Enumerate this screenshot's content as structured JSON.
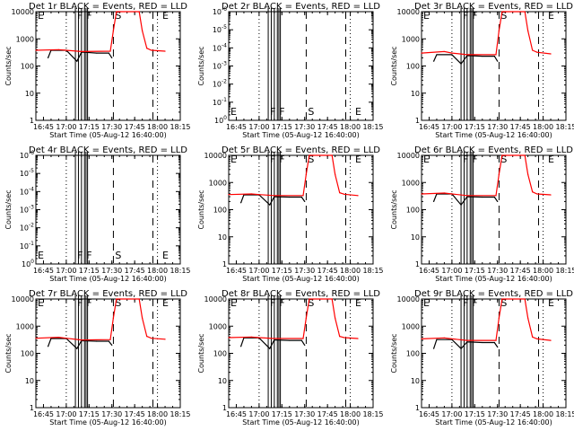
{
  "figure": {
    "layout": "3x3 grid",
    "background": "#ffffff",
    "colors": {
      "events": "#000000",
      "lld": "#ff0000",
      "axes": "#000000"
    }
  },
  "chart_data": [
    {
      "type": "line",
      "panel": 1,
      "title": "Det 1r BLACK = Events, RED = LLD",
      "xlabel": "Start Time (05-Aug-12 16:40:00)",
      "ylabel": "Counts/sec",
      "yscale": "log",
      "ylim": [
        1,
        10000
      ],
      "ytick_labels": [
        "1",
        "10",
        "100",
        "1000",
        "10000"
      ],
      "xlim_minutes": [
        0,
        95
      ],
      "xtick_labels": [
        "16:45",
        "17:00",
        "17:15",
        "17:30",
        "17:45",
        "18:00",
        "18:15"
      ],
      "has_data": true,
      "series": [
        {
          "name": "Events",
          "color": "#000000",
          "x_minutes": [
            8,
            10,
            20,
            27,
            30,
            32,
            40,
            48,
            50
          ],
          "values": [
            200,
            380,
            380,
            150,
            320,
            320,
            300,
            300,
            200
          ]
        },
        {
          "name": "LLD",
          "color": "#ff0000",
          "x_minutes": [
            0,
            15,
            20,
            30,
            49,
            51,
            53,
            68,
            70,
            73,
            76,
            85
          ],
          "values": [
            380,
            400,
            380,
            340,
            350,
            2000,
            10000,
            10000,
            2000,
            450,
            380,
            350
          ]
        }
      ],
      "markers": {
        "dotted_x": [
          "17:00",
          "18:00",
          "18:15"
        ],
        "solid_x": [
          "17:06",
          "17:08",
          "17:10",
          "17:12",
          "17:13",
          "17:14"
        ],
        "dashed_x": [
          "17:31",
          "17:57"
        ],
        "letters": [
          {
            "text": "E",
            "x": "16:40"
          },
          {
            "text": "F",
            "x": "17:06"
          },
          {
            "text": "F",
            "x": "17:12"
          },
          {
            "text": "S",
            "x": "17:31"
          },
          {
            "text": "E",
            "x": "18:02"
          }
        ]
      }
    },
    {
      "type": "line",
      "panel": 2,
      "title": "Det 2r BLACK = Events, RED = LLD",
      "xlabel": "Start Time (05-Aug-12 16:40:00)",
      "ylabel": "Counts/sec",
      "yscale": "log",
      "ytick_labels": [
        "10^0",
        "10^-1",
        "10^-2",
        "10^-3",
        "10^-4",
        "10^-5",
        "10^-6"
      ],
      "xlim_minutes": [
        0,
        95
      ],
      "xtick_labels": [
        "16:45",
        "17:00",
        "17:15",
        "17:30",
        "17:45",
        "18:00",
        "18:15"
      ],
      "has_data": false,
      "series": [],
      "markers": {
        "dotted_x": [
          "17:00",
          "18:00",
          "18:15"
        ],
        "solid_x": [
          "17:06",
          "17:08",
          "17:10",
          "17:12",
          "17:13",
          "17:14"
        ],
        "dashed_x": [
          "17:31",
          "17:57"
        ],
        "letters": [
          {
            "text": "E",
            "x": "16:40"
          },
          {
            "text": "F",
            "x": "17:06"
          },
          {
            "text": "F",
            "x": "17:12"
          },
          {
            "text": "S",
            "x": "17:31"
          },
          {
            "text": "E",
            "x": "18:02"
          }
        ]
      }
    },
    {
      "type": "line",
      "panel": 3,
      "title": "Det 3r BLACK = Events, RED = LLD",
      "xlabel": "Start Time (05-Aug-12 16:40:00)",
      "ylabel": "Counts/sec",
      "yscale": "log",
      "ylim": [
        1,
        10000
      ],
      "ytick_labels": [
        "1",
        "10",
        "100",
        "1000",
        "10000"
      ],
      "xlim_minutes": [
        0,
        95
      ],
      "xtick_labels": [
        "16:45",
        "17:00",
        "17:15",
        "17:30",
        "17:45",
        "18:00",
        "18:15"
      ],
      "has_data": true,
      "series": [
        {
          "name": "Events",
          "color": "#000000",
          "x_minutes": [
            8,
            10,
            20,
            26,
            30,
            32,
            40,
            48,
            50
          ],
          "values": [
            150,
            260,
            260,
            120,
            240,
            240,
            230,
            230,
            150
          ]
        },
        {
          "name": "LLD",
          "color": "#ff0000",
          "x_minutes": [
            0,
            15,
            20,
            30,
            49,
            51,
            53,
            68,
            70,
            73,
            76,
            85
          ],
          "values": [
            300,
            340,
            300,
            260,
            260,
            2000,
            10000,
            10000,
            2000,
            380,
            320,
            280
          ]
        }
      ],
      "markers": {
        "dotted_x": [
          "17:00",
          "18:00",
          "18:15"
        ],
        "solid_x": [
          "17:06",
          "17:08",
          "17:10",
          "17:12",
          "17:13",
          "17:14"
        ],
        "dashed_x": [
          "17:31",
          "17:57"
        ],
        "letters": [
          {
            "text": "E",
            "x": "16:40"
          },
          {
            "text": "F",
            "x": "17:06"
          },
          {
            "text": "F",
            "x": "17:12"
          },
          {
            "text": "S",
            "x": "17:31"
          },
          {
            "text": "E",
            "x": "18:02"
          }
        ]
      }
    },
    {
      "type": "line",
      "panel": 4,
      "title": "Det 4r BLACK = Events, RED = LLD",
      "xlabel": "Start Time (05-Aug-12 16:40:00)",
      "ylabel": "Counts/sec",
      "yscale": "log",
      "ytick_labels": [
        "10^0",
        "10^-1",
        "10^-2",
        "10^-3",
        "10^-4",
        "10^-5",
        "10^-6"
      ],
      "xlim_minutes": [
        0,
        95
      ],
      "xtick_labels": [
        "16:45",
        "17:00",
        "17:15",
        "17:30",
        "17:45",
        "18:00",
        "18:15"
      ],
      "has_data": false,
      "series": [],
      "markers": {
        "dotted_x": [
          "17:00",
          "18:00",
          "18:15"
        ],
        "solid_x": [
          "17:06",
          "17:08",
          "17:10",
          "17:12",
          "17:13",
          "17:14"
        ],
        "dashed_x": [
          "17:31",
          "17:57"
        ],
        "letters": [
          {
            "text": "E",
            "x": "16:40"
          },
          {
            "text": "F",
            "x": "17:06"
          },
          {
            "text": "F",
            "x": "17:12"
          },
          {
            "text": "S",
            "x": "17:31"
          },
          {
            "text": "E",
            "x": "18:02"
          }
        ]
      }
    },
    {
      "type": "line",
      "panel": 5,
      "title": "Det 5r BLACK = Events, RED = LLD",
      "xlabel": "Start Time (05-Aug-12 16:40:00)",
      "ylabel": "Counts/sec",
      "yscale": "log",
      "ylim": [
        1,
        10000
      ],
      "ytick_labels": [
        "1",
        "10",
        "100",
        "1000",
        "10000"
      ],
      "xlim_minutes": [
        0,
        95
      ],
      "xtick_labels": [
        "16:45",
        "17:00",
        "17:15",
        "17:30",
        "17:45",
        "18:00",
        "18:15"
      ],
      "has_data": true,
      "series": [
        {
          "name": "Events",
          "color": "#000000",
          "x_minutes": [
            8,
            10,
            20,
            27,
            30,
            32,
            40,
            48,
            50
          ],
          "values": [
            180,
            350,
            350,
            150,
            300,
            300,
            290,
            290,
            200
          ]
        },
        {
          "name": "LLD",
          "color": "#ff0000",
          "x_minutes": [
            0,
            15,
            20,
            30,
            49,
            51,
            53,
            68,
            70,
            73,
            76,
            85
          ],
          "values": [
            360,
            380,
            360,
            330,
            330,
            2000,
            10000,
            10000,
            2000,
            420,
            370,
            330
          ]
        }
      ],
      "markers": {
        "dotted_x": [
          "17:00",
          "18:00",
          "18:15"
        ],
        "solid_x": [
          "17:06",
          "17:08",
          "17:10",
          "17:12",
          "17:13",
          "17:14"
        ],
        "dashed_x": [
          "17:31",
          "17:57"
        ],
        "letters": [
          {
            "text": "E",
            "x": "16:40"
          },
          {
            "text": "F",
            "x": "17:06"
          },
          {
            "text": "F",
            "x": "17:12"
          },
          {
            "text": "S",
            "x": "17:31"
          },
          {
            "text": "E",
            "x": "18:02"
          }
        ]
      }
    },
    {
      "type": "line",
      "panel": 6,
      "title": "Det 6r BLACK = Events, RED = LLD",
      "xlabel": "Start Time (05-Aug-12 16:40:00)",
      "ylabel": "Counts/sec",
      "yscale": "log",
      "ylim": [
        1,
        10000
      ],
      "ytick_labels": [
        "1",
        "10",
        "100",
        "1000",
        "10000"
      ],
      "xlim_minutes": [
        0,
        95
      ],
      "xtick_labels": [
        "16:45",
        "17:00",
        "17:15",
        "17:30",
        "17:45",
        "18:00",
        "18:15"
      ],
      "has_data": true,
      "series": [
        {
          "name": "Events",
          "color": "#000000",
          "x_minutes": [
            8,
            10,
            20,
            26,
            30,
            32,
            40,
            48,
            50
          ],
          "values": [
            200,
            380,
            380,
            150,
            300,
            300,
            290,
            290,
            200
          ]
        },
        {
          "name": "LLD",
          "color": "#ff0000",
          "x_minutes": [
            0,
            15,
            20,
            30,
            49,
            51,
            53,
            68,
            70,
            73,
            76,
            85
          ],
          "values": [
            380,
            410,
            380,
            330,
            330,
            2000,
            10000,
            10000,
            2000,
            450,
            380,
            350
          ]
        }
      ],
      "markers": {
        "dotted_x": [
          "17:00",
          "18:00",
          "18:15"
        ],
        "solid_x": [
          "17:06",
          "17:08",
          "17:10",
          "17:12",
          "17:13",
          "17:14"
        ],
        "dashed_x": [
          "17:31",
          "17:57"
        ],
        "letters": [
          {
            "text": "E",
            "x": "16:40"
          },
          {
            "text": "F",
            "x": "17:06"
          },
          {
            "text": "F",
            "x": "17:12"
          },
          {
            "text": "S",
            "x": "17:31"
          },
          {
            "text": "E",
            "x": "18:02"
          }
        ]
      }
    },
    {
      "type": "line",
      "panel": 7,
      "title": "Det 7r BLACK = Events, RED = LLD",
      "xlabel": "Start Time (05-Aug-12 16:40:00)",
      "ylabel": "Counts/sec",
      "yscale": "log",
      "ylim": [
        1,
        10000
      ],
      "ytick_labels": [
        "1",
        "10",
        "100",
        "1000",
        "10000"
      ],
      "xlim_minutes": [
        0,
        95
      ],
      "xtick_labels": [
        "16:45",
        "17:00",
        "17:15",
        "17:30",
        "17:45",
        "18:00",
        "18:15"
      ],
      "has_data": true,
      "series": [
        {
          "name": "Events",
          "color": "#000000",
          "x_minutes": [
            8,
            10,
            20,
            27,
            30,
            32,
            40,
            48,
            50
          ],
          "values": [
            180,
            350,
            350,
            150,
            290,
            290,
            280,
            280,
            200
          ]
        },
        {
          "name": "LLD",
          "color": "#ff0000",
          "x_minutes": [
            0,
            15,
            20,
            30,
            49,
            51,
            53,
            68,
            70,
            73,
            76,
            85
          ],
          "values": [
            360,
            390,
            360,
            310,
            320,
            2000,
            10000,
            10000,
            2000,
            420,
            360,
            330
          ]
        }
      ],
      "markers": {
        "dotted_x": [
          "17:00",
          "18:00",
          "18:15"
        ],
        "solid_x": [
          "17:06",
          "17:08",
          "17:10",
          "17:12",
          "17:13",
          "17:14"
        ],
        "dashed_x": [
          "17:31",
          "17:57"
        ],
        "letters": [
          {
            "text": "E",
            "x": "16:40"
          },
          {
            "text": "F",
            "x": "17:06"
          },
          {
            "text": "F",
            "x": "17:12"
          },
          {
            "text": "S",
            "x": "17:31"
          },
          {
            "text": "E",
            "x": "18:02"
          }
        ]
      }
    },
    {
      "type": "line",
      "panel": 8,
      "title": "Det 8r BLACK = Events, RED = LLD",
      "xlabel": "Start Time (05-Aug-12 16:40:00)",
      "ylabel": "Counts/sec",
      "yscale": "log",
      "ylim": [
        1,
        10000
      ],
      "ytick_labels": [
        "1",
        "10",
        "100",
        "1000",
        "10000"
      ],
      "xlim_minutes": [
        0,
        95
      ],
      "xtick_labels": [
        "16:45",
        "17:00",
        "17:15",
        "17:30",
        "17:45",
        "18:00",
        "18:15"
      ],
      "has_data": true,
      "series": [
        {
          "name": "Events",
          "color": "#000000",
          "x_minutes": [
            8,
            10,
            20,
            27,
            30,
            32,
            40,
            48,
            50
          ],
          "values": [
            180,
            370,
            370,
            150,
            310,
            310,
            300,
            300,
            200
          ]
        },
        {
          "name": "LLD",
          "color": "#ff0000",
          "x_minutes": [
            0,
            15,
            20,
            30,
            49,
            51,
            53,
            68,
            70,
            73,
            76,
            85
          ],
          "values": [
            380,
            400,
            380,
            350,
            350,
            2000,
            10000,
            10000,
            2000,
            420,
            380,
            350
          ]
        }
      ],
      "markers": {
        "dotted_x": [
          "17:00",
          "18:00",
          "18:15"
        ],
        "solid_x": [
          "17:06",
          "17:08",
          "17:10",
          "17:12",
          "17:13",
          "17:14"
        ],
        "dashed_x": [
          "17:31",
          "17:57"
        ],
        "letters": [
          {
            "text": "E",
            "x": "16:40"
          },
          {
            "text": "F",
            "x": "17:06"
          },
          {
            "text": "F",
            "x": "17:12"
          },
          {
            "text": "S",
            "x": "17:31"
          },
          {
            "text": "E",
            "x": "18:02"
          }
        ]
      }
    },
    {
      "type": "line",
      "panel": 9,
      "title": "Det 9r BLACK = Events, RED = LLD",
      "xlabel": "Start Time (05-Aug-12 16:40:00)",
      "ylabel": "Counts/sec",
      "yscale": "log",
      "ylim": [
        1,
        10000
      ],
      "ytick_labels": [
        "1",
        "10",
        "100",
        "1000",
        "10000"
      ],
      "xlim_minutes": [
        0,
        95
      ],
      "xtick_labels": [
        "16:45",
        "17:00",
        "17:15",
        "17:30",
        "17:45",
        "18:00",
        "18:15"
      ],
      "has_data": true,
      "series": [
        {
          "name": "Events",
          "color": "#000000",
          "x_minutes": [
            8,
            10,
            20,
            26,
            30,
            32,
            40,
            48,
            50
          ],
          "values": [
            150,
            320,
            320,
            150,
            260,
            260,
            250,
            250,
            170
          ]
        },
        {
          "name": "LLD",
          "color": "#ff0000",
          "x_minutes": [
            0,
            15,
            20,
            30,
            49,
            51,
            53,
            68,
            70,
            73,
            76,
            85
          ],
          "values": [
            340,
            370,
            340,
            300,
            300,
            2000,
            10000,
            10000,
            2000,
            400,
            340,
            300
          ]
        }
      ],
      "markers": {
        "dotted_x": [
          "17:00",
          "18:00",
          "18:15"
        ],
        "solid_x": [
          "17:06",
          "17:08",
          "17:10",
          "17:12",
          "17:13",
          "17:14"
        ],
        "dashed_x": [
          "17:31",
          "17:57"
        ],
        "letters": [
          {
            "text": "E",
            "x": "16:40"
          },
          {
            "text": "F",
            "x": "17:06"
          },
          {
            "text": "F",
            "x": "17:12"
          },
          {
            "text": "S",
            "x": "17:31"
          },
          {
            "text": "E",
            "x": "18:02"
          }
        ]
      }
    }
  ]
}
